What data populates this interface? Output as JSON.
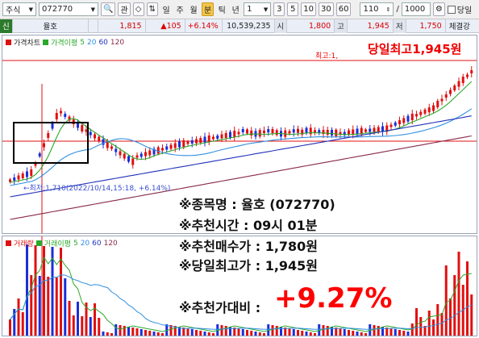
{
  "toolbar": {
    "market": "주식",
    "code": "072770",
    "buttons": [
      "관",
      "◇"
    ],
    "periods": [
      "일",
      "주",
      "월",
      "분",
      "틱",
      "년"
    ],
    "selected_period": "분",
    "interval": "1",
    "minute_options": [
      "3",
      "5",
      "10",
      "30",
      "60"
    ],
    "count": "110",
    "total": "1000",
    "check_label": "당일"
  },
  "quote": {
    "tag": "신",
    "name": "율호",
    "price": "1,815",
    "change": "▲105",
    "rate": "+6.14%",
    "volume": "10,539,235",
    "open_label": "시",
    "open": "1,800",
    "high_label": "고",
    "high": "1,945",
    "low_label": "저",
    "low": "1,750",
    "tab": "체결강"
  },
  "price_panel": {
    "legend": [
      "가격차트",
      "가격이평",
      "5",
      "20",
      "60",
      "120"
    ],
    "high_label": "최고:1,",
    "today_high": "당일최고1,945원",
    "low_label": "←최저:1,710(2022/10/14,15:18, +6.14%)"
  },
  "volume_panel": {
    "legend": [
      "거래량",
      "거래이평",
      "5",
      "20",
      "60",
      "120"
    ]
  },
  "overlay": {
    "line1": "※종목명 : 율호 (072770)",
    "line2": "※추천시간 : 09시 01분",
    "line3": "※추천매수가 : 1,780원",
    "line4": "※당일최고가 : 1,945원",
    "line5": "※추천가대비 :",
    "gain": "+9.27%"
  },
  "colors": {
    "up": "#e01010",
    "down": "#1a2fd8",
    "ma5": "#2aa82a",
    "ma20": "#2f8fe0",
    "ma60": "#2233bb",
    "ma120": "#8a2a4a"
  }
}
